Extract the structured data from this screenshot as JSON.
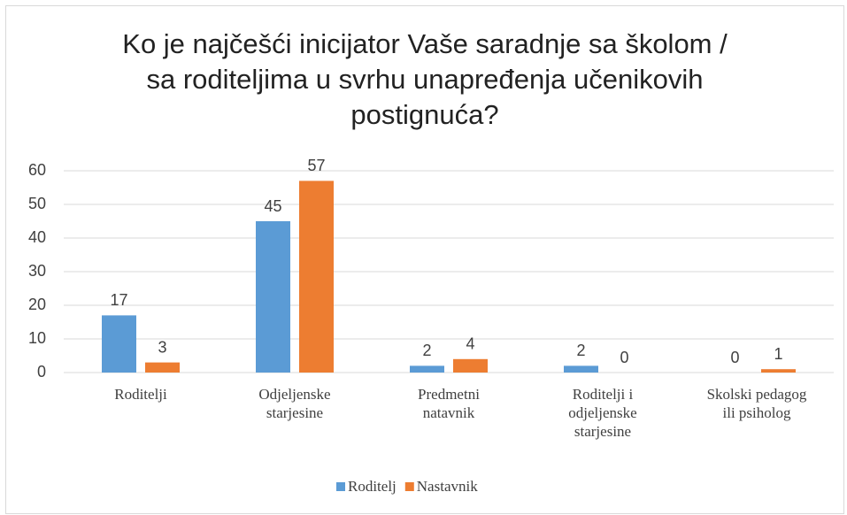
{
  "chart_data": {
    "type": "bar",
    "title": "Ko je najčešći inicijator Vaše saradnje sa školom / sa roditeljima u svrhu unapređenja učenikovih postignuća?",
    "categories": [
      [
        "Roditelji"
      ],
      [
        "Odjeljenske",
        "starjesine"
      ],
      [
        "Predmetni",
        "natavnik"
      ],
      [
        "Roditelji i",
        "odjeljenske",
        "starjesine"
      ],
      [
        "Skolski pedagog",
        "ili psiholog"
      ]
    ],
    "series": [
      {
        "name": "Roditelj",
        "color": "#5b9bd5",
        "values": [
          17,
          45,
          2,
          2,
          0
        ]
      },
      {
        "name": "Nastavnik",
        "color": "#ed7d31",
        "values": [
          3,
          57,
          4,
          0,
          1
        ]
      }
    ],
    "ylim": [
      0,
      60
    ],
    "yticks": [
      0,
      10,
      20,
      30,
      40,
      50,
      60
    ],
    "grid": true,
    "legend": "bottom"
  }
}
